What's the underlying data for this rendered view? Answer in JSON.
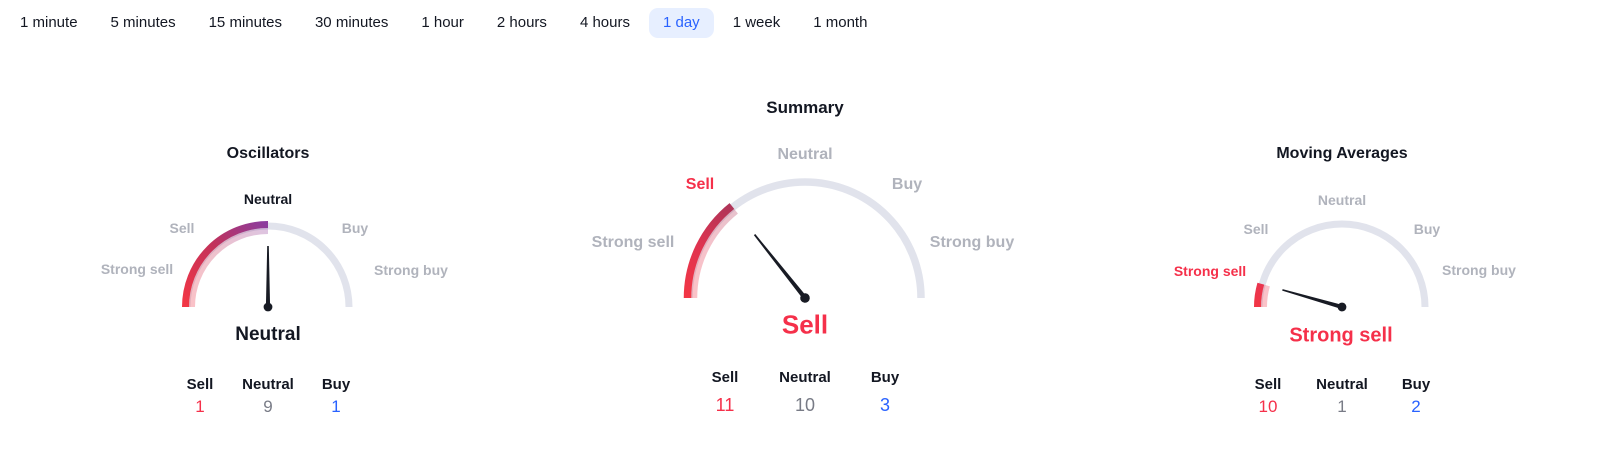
{
  "tabs": {
    "selected_index": 7,
    "items": [
      {
        "label": "1 minute"
      },
      {
        "label": "5 minutes"
      },
      {
        "label": "15 minutes"
      },
      {
        "label": "30 minutes"
      },
      {
        "label": "1 hour"
      },
      {
        "label": "2 hours"
      },
      {
        "label": "4 hours"
      },
      {
        "label": "1 day"
      },
      {
        "label": "1 week"
      },
      {
        "label": "1 month"
      }
    ]
  },
  "gauges": [
    {
      "title": "Oscillators",
      "scale": {
        "strong_sell": "Strong sell",
        "sell": "Sell",
        "neutral": "Neutral",
        "buy": "Buy",
        "strong_buy": "Strong buy"
      },
      "active_scale_label": "Neutral",
      "signal": "Neutral",
      "needle_angle_deg": 90,
      "counters": {
        "sell_label": "Sell",
        "neutral_label": "Neutral",
        "buy_label": "Buy",
        "sell": "1",
        "neutral": "9",
        "buy": "1"
      }
    },
    {
      "title": "Summary",
      "scale": {
        "strong_sell": "Strong sell",
        "sell": "Sell",
        "neutral": "Neutral",
        "buy": "Buy",
        "strong_buy": "Strong buy"
      },
      "active_scale_label": "Sell",
      "signal": "Sell",
      "needle_angle_deg": 128.5,
      "counters": {
        "sell_label": "Sell",
        "neutral_label": "Neutral",
        "buy_label": "Buy",
        "sell": "11",
        "neutral": "10",
        "buy": "3"
      }
    },
    {
      "title": "Moving Averages",
      "scale": {
        "strong_sell": "Strong sell",
        "sell": "Sell",
        "neutral": "Neutral",
        "buy": "Buy",
        "strong_buy": "Strong buy"
      },
      "active_scale_label": "Strong sell",
      "signal": "Strong sell",
      "needle_angle_deg": 164,
      "counters": {
        "sell_label": "Sell",
        "neutral_label": "Neutral",
        "buy_label": "Buy",
        "sell": "10",
        "neutral": "1",
        "buy": "2"
      }
    }
  ],
  "colors": {
    "sell_red": "#f5304a",
    "buy_blue": "#2962ff",
    "neutral_value_gray": "#787b86",
    "scale_label_gray": "#b0b3bc",
    "track_gray": "#e1e3ec",
    "text_dark": "#131722",
    "selected_tab_bg": "#e7efff",
    "selected_tab_text": "#2962ff"
  }
}
